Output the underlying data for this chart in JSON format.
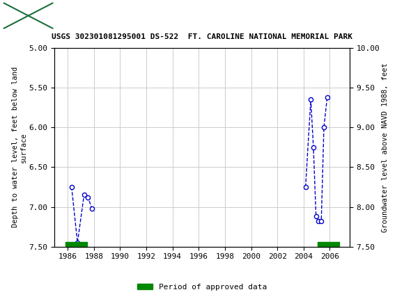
{
  "title": "USGS 302301081295001 DS-522  FT. CAROLINE NATIONAL MEMORIAL PARK",
  "ylabel_left": "Depth to water level, feet below land\nsurface",
  "ylabel_right": "Groundwater level above NAVD 1988, feet",
  "ylim_left": [
    5.0,
    7.5
  ],
  "yticks_left": [
    5.0,
    5.5,
    6.0,
    6.5,
    7.0,
    7.5
  ],
  "yticks_right": [
    10.0,
    9.5,
    9.0,
    8.5,
    8.0,
    7.5
  ],
  "xlim": [
    1985.0,
    2007.5
  ],
  "xticks": [
    1986,
    1988,
    1990,
    1992,
    1994,
    1996,
    1998,
    2000,
    2002,
    2004,
    2006
  ],
  "cluster1_x": [
    1986.3,
    1986.75,
    1987.25,
    1987.55,
    1987.85
  ],
  "cluster1_y": [
    6.75,
    7.45,
    6.85,
    6.88,
    7.02
  ],
  "cluster2_x": [
    2004.15,
    2004.55,
    2004.75,
    2004.95,
    2005.15,
    2005.35,
    2005.55,
    2005.8
  ],
  "cluster2_y": [
    6.75,
    5.65,
    6.25,
    7.12,
    7.18,
    7.18,
    6.0,
    5.62
  ],
  "line_color": "#0000CC",
  "marker_face": "#ffffff",
  "approved_periods": [
    {
      "x_start": 1985.85,
      "x_end": 1987.5
    },
    {
      "x_start": 2005.05,
      "x_end": 2006.7
    }
  ],
  "approved_color": "#008800",
  "header_bg": "#1a6e3c",
  "header_text": "#ffffff",
  "bg_color": "#ffffff",
  "grid_color": "#cccccc"
}
